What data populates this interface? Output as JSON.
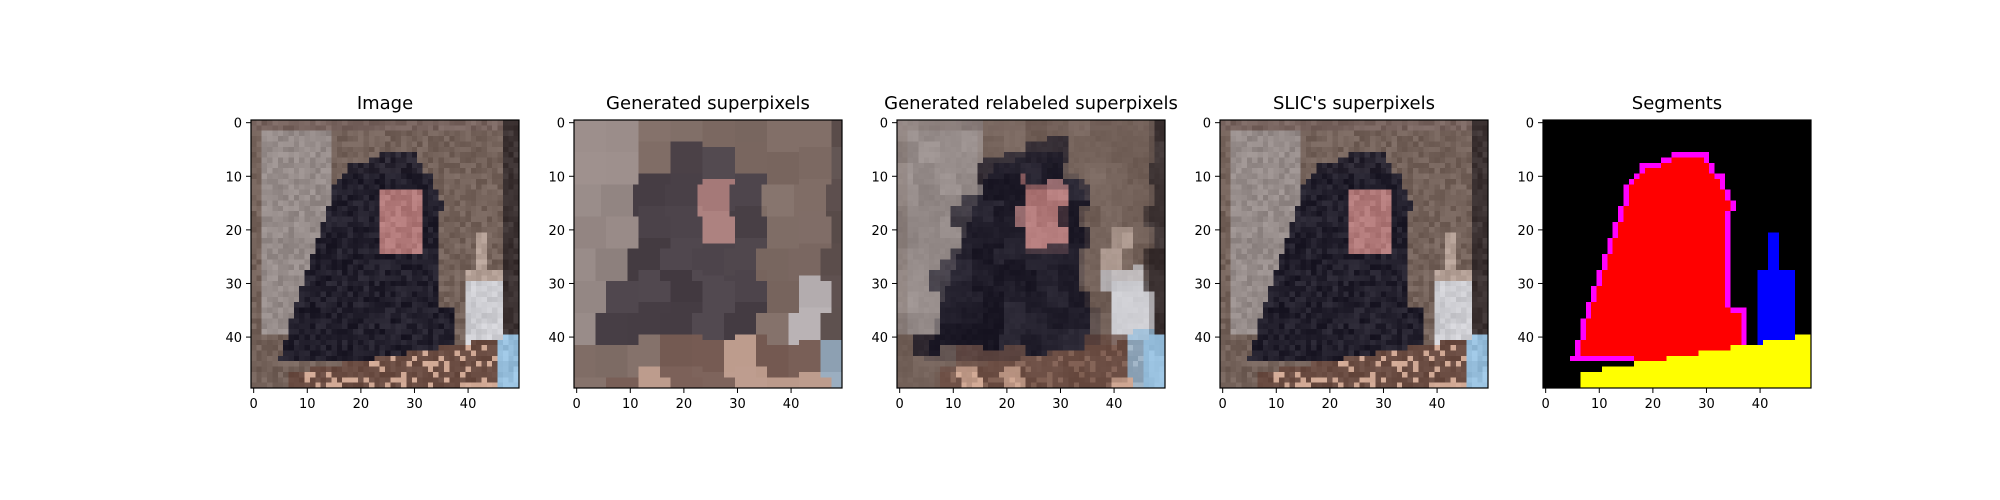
{
  "figure": {
    "panels": [
      {
        "title": "Image",
        "kind": "photo"
      },
      {
        "title": "Generated superpixels",
        "kind": "superpixels"
      },
      {
        "title": "Generated relabeled superpixels",
        "kind": "relabeled"
      },
      {
        "title": "SLIC's superpixels",
        "kind": "slic"
      },
      {
        "title": "Segments",
        "kind": "segments"
      }
    ],
    "x_ticks": [
      "0",
      "10",
      "20",
      "30",
      "40"
    ],
    "y_ticks": [
      "0",
      "10",
      "20",
      "30",
      "40"
    ]
  },
  "chart_data": [
    {
      "type": "heatmap",
      "title": "Image",
      "xlim": [
        -0.5,
        49.5
      ],
      "ylim": [
        49.5,
        -0.5
      ],
      "xticks": [
        0,
        10,
        20,
        30,
        40
      ],
      "yticks": [
        0,
        10,
        20,
        30,
        40
      ],
      "grid": false
    },
    {
      "type": "heatmap",
      "title": "Generated superpixels",
      "xlim": [
        -0.5,
        49.5
      ],
      "ylim": [
        49.5,
        -0.5
      ],
      "xticks": [
        0,
        10,
        20,
        30,
        40
      ],
      "yticks": [
        0,
        10,
        20,
        30,
        40
      ],
      "grid": false
    },
    {
      "type": "heatmap",
      "title": "Generated relabeled superpixels",
      "xlim": [
        -0.5,
        49.5
      ],
      "ylim": [
        49.5,
        -0.5
      ],
      "xticks": [
        0,
        10,
        20,
        30,
        40
      ],
      "yticks": [
        0,
        10,
        20,
        30,
        40
      ],
      "grid": false
    },
    {
      "type": "heatmap",
      "title": "SLIC's superpixels",
      "xlim": [
        -0.5,
        49.5
      ],
      "ylim": [
        49.5,
        -0.5
      ],
      "xticks": [
        0,
        10,
        20,
        30,
        40
      ],
      "yticks": [
        0,
        10,
        20,
        30,
        40
      ],
      "grid": false
    },
    {
      "type": "heatmap",
      "title": "Segments",
      "xlim": [
        -0.5,
        49.5
      ],
      "ylim": [
        49.5,
        -0.5
      ],
      "xticks": [
        0,
        10,
        20,
        30,
        40
      ],
      "yticks": [
        0,
        10,
        20,
        30,
        40
      ],
      "grid": false,
      "colors": {
        "background": "#000000",
        "person": "#ff0000",
        "boundary": "#ff00ff",
        "bottle": "#0000ff",
        "table": "#ffff00"
      }
    }
  ]
}
